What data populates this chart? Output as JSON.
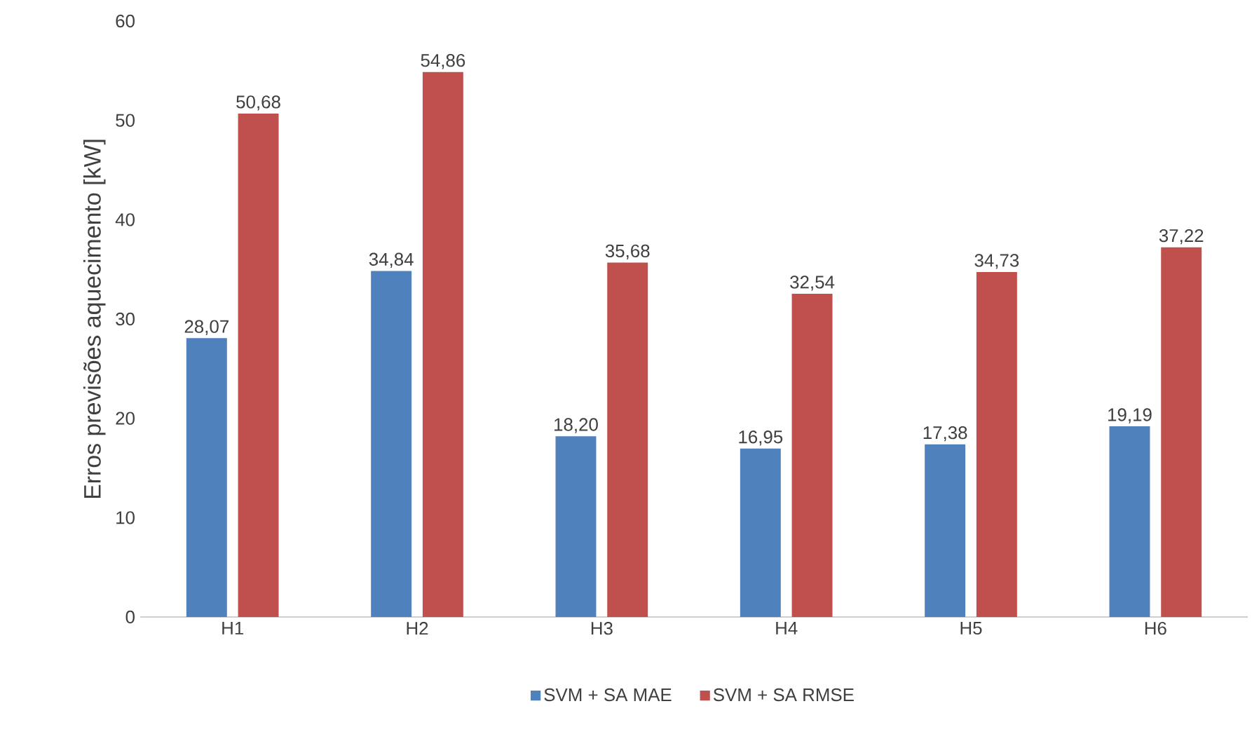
{
  "chart_data": {
    "type": "bar",
    "ylabel": "Erros previsões aquecimento [kW]",
    "categories": [
      "H1",
      "H2",
      "H3",
      "H4",
      "H5",
      "H6"
    ],
    "series": [
      {
        "name": "SVM + SA MAE",
        "color": "#4f81bd",
        "values": [
          28.07,
          34.84,
          18.2,
          16.95,
          17.38,
          19.19
        ],
        "value_labels": [
          "28,07",
          "34,84",
          "18,20",
          "16,95",
          "17,38",
          "19,19"
        ]
      },
      {
        "name": "SVM + SA RMSE",
        "color": "#c0504d",
        "values": [
          50.68,
          54.86,
          35.68,
          32.54,
          34.73,
          37.22
        ],
        "value_labels": [
          "50,68",
          "54,86",
          "35,68",
          "32,54",
          "34,73",
          "37,22"
        ]
      }
    ],
    "ylim": [
      0,
      60
    ],
    "yticks": [
      0,
      10,
      20,
      30,
      40,
      50,
      60
    ],
    "grid": false,
    "legend": "bottom"
  }
}
